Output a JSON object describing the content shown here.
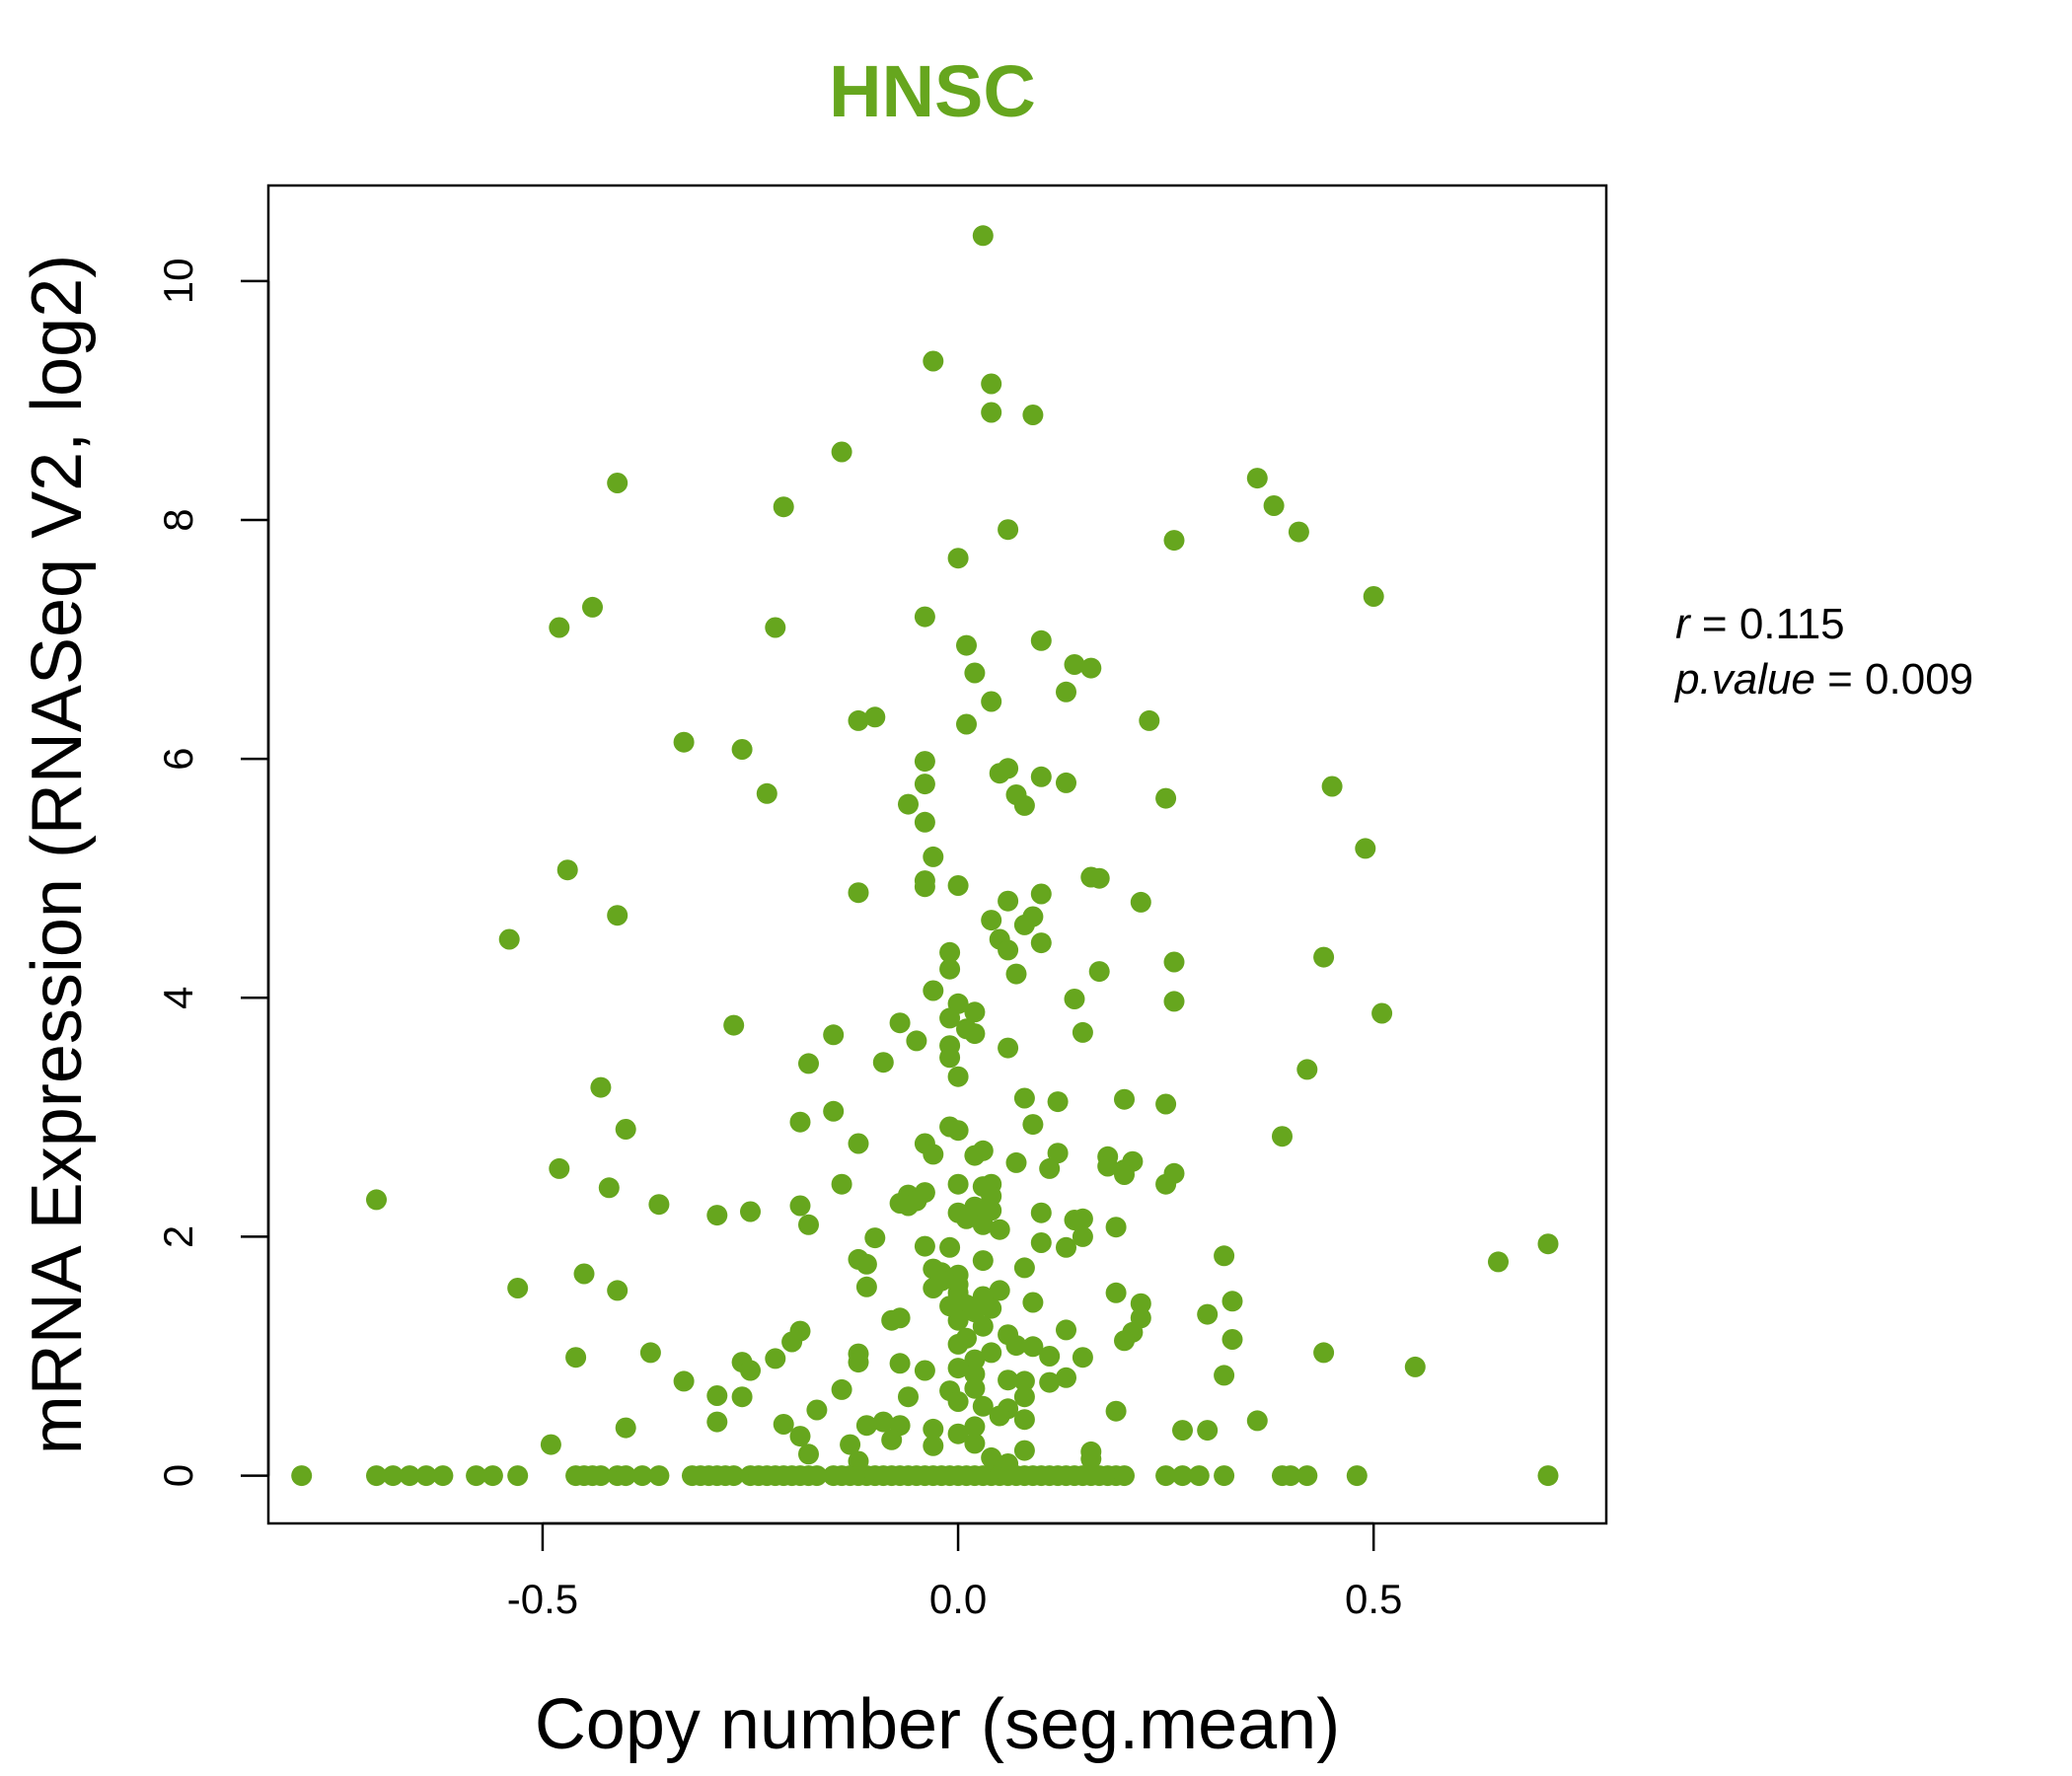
{
  "chart_data": {
    "type": "scatter",
    "title": "HNSC",
    "xlabel": "Copy number (seg.mean)",
    "ylabel": "mRNA Expression (RNASeq V2, log2)",
    "xlim": [
      -0.83,
      0.78
    ],
    "ylim": [
      -0.4,
      10.8
    ],
    "xticks": [
      -0.5,
      0.0,
      0.5
    ],
    "xtick_labels": [
      "-0.5",
      "0.0",
      "0.5"
    ],
    "yticks": [
      0,
      2,
      4,
      6,
      8,
      10
    ],
    "ytick_labels": [
      "0",
      "2",
      "4",
      "6",
      "8",
      "10"
    ],
    "grid": false,
    "color": "#66A61E",
    "annotations": {
      "r_label": "r",
      "r_value": "0.115",
      "p_label": "p.value",
      "p_value": "0.009"
    },
    "points": [
      [
        0.03,
        10.38
      ],
      [
        -0.03,
        9.33
      ],
      [
        0.04,
        9.14
      ],
      [
        0.04,
        8.9
      ],
      [
        0.09,
        8.88
      ],
      [
        -0.14,
        8.57
      ],
      [
        -0.41,
        8.31
      ],
      [
        0.36,
        8.35
      ],
      [
        0.38,
        8.12
      ],
      [
        -0.21,
        8.11
      ],
      [
        0.06,
        7.92
      ],
      [
        0.41,
        7.9
      ],
      [
        0.26,
        7.83
      ],
      [
        0.0,
        7.68
      ],
      [
        0.5,
        7.36
      ],
      [
        -0.44,
        7.27
      ],
      [
        -0.48,
        7.1
      ],
      [
        -0.22,
        7.1
      ],
      [
        -0.04,
        7.19
      ],
      [
        0.01,
        6.95
      ],
      [
        0.1,
        6.99
      ],
      [
        0.14,
        6.79
      ],
      [
        0.16,
        6.76
      ],
      [
        0.02,
        6.72
      ],
      [
        0.13,
        6.56
      ],
      [
        0.04,
        6.48
      ],
      [
        -0.12,
        6.32
      ],
      [
        -0.1,
        6.35
      ],
      [
        0.01,
        6.29
      ],
      [
        0.23,
        6.32
      ],
      [
        -0.33,
        6.14
      ],
      [
        -0.26,
        6.08
      ],
      [
        -0.04,
        5.98
      ],
      [
        0.05,
        5.88
      ],
      [
        0.06,
        5.92
      ],
      [
        0.1,
        5.85
      ],
      [
        -0.04,
        5.79
      ],
      [
        0.13,
        5.8
      ],
      [
        0.45,
        5.77
      ],
      [
        -0.23,
        5.71
      ],
      [
        0.07,
        5.7
      ],
      [
        0.25,
        5.67
      ],
      [
        -0.06,
        5.62
      ],
      [
        0.08,
        5.61
      ],
      [
        -0.04,
        5.47
      ],
      [
        0.49,
        5.25
      ],
      [
        -0.03,
        5.18
      ],
      [
        -0.47,
        5.07
      ],
      [
        0.16,
        5.01
      ],
      [
        0.17,
        5.0
      ],
      [
        -0.04,
        4.98
      ],
      [
        -0.04,
        4.93
      ],
      [
        0.0,
        4.94
      ],
      [
        -0.12,
        4.88
      ],
      [
        0.1,
        4.87
      ],
      [
        0.06,
        4.81
      ],
      [
        0.22,
        4.8
      ],
      [
        -0.41,
        4.69
      ],
      [
        0.04,
        4.65
      ],
      [
        0.09,
        4.68
      ],
      [
        0.08,
        4.61
      ],
      [
        -0.54,
        4.49
      ],
      [
        0.05,
        4.49
      ],
      [
        0.1,
        4.46
      ],
      [
        0.06,
        4.4
      ],
      [
        0.44,
        4.34
      ],
      [
        0.26,
        4.3
      ],
      [
        -0.01,
        4.38
      ],
      [
        -0.01,
        4.24
      ],
      [
        0.07,
        4.2
      ],
      [
        0.17,
        4.22
      ],
      [
        -0.03,
        4.06
      ],
      [
        0.14,
        3.99
      ],
      [
        0.26,
        3.97
      ],
      [
        0.0,
        3.95
      ],
      [
        0.02,
        3.88
      ],
      [
        -0.01,
        3.83
      ],
      [
        0.51,
        3.87
      ],
      [
        0.01,
        3.74
      ],
      [
        -0.07,
        3.79
      ],
      [
        -0.27,
        3.77
      ],
      [
        0.02,
        3.7
      ],
      [
        0.15,
        3.71
      ],
      [
        -0.15,
        3.69
      ],
      [
        -0.05,
        3.64
      ],
      [
        0.06,
        3.58
      ],
      [
        -0.01,
        3.6
      ],
      [
        -0.01,
        3.5
      ],
      [
        -0.09,
        3.46
      ],
      [
        -0.18,
        3.45
      ],
      [
        0.42,
        3.4
      ],
      [
        0.0,
        3.34
      ],
      [
        -0.43,
        3.25
      ],
      [
        0.08,
        3.16
      ],
      [
        0.2,
        3.15
      ],
      [
        0.12,
        3.13
      ],
      [
        0.25,
        3.11
      ],
      [
        -0.15,
        3.05
      ],
      [
        -0.19,
        2.96
      ],
      [
        0.09,
        2.94
      ],
      [
        -0.01,
        2.92
      ],
      [
        0.0,
        2.89
      ],
      [
        -0.4,
        2.9
      ],
      [
        0.39,
        2.84
      ],
      [
        -0.12,
        2.78
      ],
      [
        -0.04,
        2.78
      ],
      [
        0.03,
        2.72
      ],
      [
        0.12,
        2.7
      ],
      [
        -0.03,
        2.69
      ],
      [
        0.02,
        2.68
      ],
      [
        0.18,
        2.67
      ],
      [
        0.07,
        2.62
      ],
      [
        0.21,
        2.63
      ],
      [
        0.18,
        2.59
      ],
      [
        0.11,
        2.57
      ],
      [
        -0.48,
        2.57
      ],
      [
        0.2,
        2.56
      ],
      [
        0.26,
        2.53
      ],
      [
        0.2,
        2.52
      ],
      [
        0.0,
        2.44
      ],
      [
        0.03,
        2.42
      ],
      [
        -0.14,
        2.44
      ],
      [
        0.04,
        2.44
      ],
      [
        0.25,
        2.44
      ],
      [
        -0.42,
        2.41
      ],
      [
        -0.06,
        2.35
      ],
      [
        0.04,
        2.34
      ],
      [
        -0.07,
        2.28
      ],
      [
        -0.04,
        2.37
      ],
      [
        -0.05,
        2.3
      ],
      [
        -0.06,
        2.26
      ],
      [
        -0.7,
        2.31
      ],
      [
        -0.36,
        2.27
      ],
      [
        -0.19,
        2.26
      ],
      [
        0.02,
        2.25
      ],
      [
        0.04,
        2.22
      ],
      [
        -0.25,
        2.21
      ],
      [
        -0.29,
        2.18
      ],
      [
        0.0,
        2.2
      ],
      [
        0.1,
        2.2
      ],
      [
        0.01,
        2.15
      ],
      [
        0.15,
        2.15
      ],
      [
        0.14,
        2.14
      ],
      [
        0.03,
        2.1
      ],
      [
        -0.18,
        2.1
      ],
      [
        0.19,
        2.08
      ],
      [
        0.05,
        2.06
      ],
      [
        0.15,
        2.0
      ],
      [
        -0.1,
        1.99
      ],
      [
        0.1,
        1.95
      ],
      [
        0.71,
        1.94
      ],
      [
        -0.04,
        1.92
      ],
      [
        0.13,
        1.91
      ],
      [
        -0.01,
        1.91
      ],
      [
        0.32,
        1.84
      ],
      [
        -0.12,
        1.81
      ],
      [
        0.03,
        1.8
      ],
      [
        0.65,
        1.79
      ],
      [
        -0.11,
        1.77
      ],
      [
        -0.03,
        1.73
      ],
      [
        0.08,
        1.74
      ],
      [
        -0.02,
        1.7
      ],
      [
        -0.45,
        1.69
      ],
      [
        0.0,
        1.68
      ],
      [
        -0.02,
        1.63
      ],
      [
        0.0,
        1.6
      ],
      [
        -0.11,
        1.58
      ],
      [
        -0.53,
        1.57
      ],
      [
        -0.03,
        1.57
      ],
      [
        -0.41,
        1.55
      ],
      [
        0.05,
        1.55
      ],
      [
        0.0,
        1.53
      ],
      [
        0.19,
        1.53
      ],
      [
        0.03,
        1.5
      ],
      [
        0.33,
        1.46
      ],
      [
        0.09,
        1.45
      ],
      [
        0.22,
        1.44
      ],
      [
        0.01,
        1.43
      ],
      [
        -0.01,
        1.42
      ],
      [
        0.04,
        1.4
      ],
      [
        0.02,
        1.37
      ],
      [
        0.3,
        1.35
      ],
      [
        0.22,
        1.32
      ],
      [
        -0.08,
        1.3
      ],
      [
        0.0,
        1.3
      ],
      [
        -0.07,
        1.32
      ],
      [
        0.03,
        1.25
      ],
      [
        0.13,
        1.22
      ],
      [
        -0.19,
        1.21
      ],
      [
        0.21,
        1.2
      ],
      [
        0.06,
        1.18
      ],
      [
        0.01,
        1.15
      ],
      [
        0.33,
        1.14
      ],
      [
        0.2,
        1.13
      ],
      [
        -0.2,
        1.12
      ],
      [
        0.0,
        1.1
      ],
      [
        0.07,
        1.09
      ],
      [
        0.09,
        1.08
      ],
      [
        -0.37,
        1.03
      ],
      [
        0.04,
        1.03
      ],
      [
        0.44,
        1.03
      ],
      [
        -0.12,
        1.02
      ],
      [
        0.11,
        1.0
      ],
      [
        -0.46,
        0.99
      ],
      [
        0.15,
        0.99
      ],
      [
        -0.22,
        0.98
      ],
      [
        0.02,
        0.97
      ],
      [
        -0.26,
        0.95
      ],
      [
        -0.12,
        0.95
      ],
      [
        -0.07,
        0.94
      ],
      [
        0.55,
        0.91
      ],
      [
        -0.04,
        0.88
      ],
      [
        0.0,
        0.9
      ],
      [
        -0.25,
        0.88
      ],
      [
        0.02,
        0.85
      ],
      [
        0.32,
        0.84
      ],
      [
        0.13,
        0.82
      ],
      [
        -0.33,
        0.79
      ],
      [
        0.06,
        0.8
      ],
      [
        0.08,
        0.79
      ],
      [
        0.11,
        0.78
      ],
      [
        0.02,
        0.73
      ],
      [
        -0.14,
        0.72
      ],
      [
        -0.01,
        0.71
      ],
      [
        -0.29,
        0.67
      ],
      [
        0.08,
        0.66
      ],
      [
        -0.06,
        0.66
      ],
      [
        0.0,
        0.62
      ],
      [
        -0.26,
        0.66
      ],
      [
        0.03,
        0.58
      ],
      [
        0.06,
        0.56
      ],
      [
        -0.17,
        0.55
      ],
      [
        0.19,
        0.54
      ],
      [
        0.05,
        0.5
      ],
      [
        0.08,
        0.47
      ],
      [
        -0.29,
        0.45
      ],
      [
        0.36,
        0.46
      ],
      [
        -0.09,
        0.45
      ],
      [
        -0.21,
        0.43
      ],
      [
        -0.11,
        0.42
      ],
      [
        -0.07,
        0.42
      ],
      [
        0.02,
        0.41
      ],
      [
        -0.03,
        0.39
      ],
      [
        -0.4,
        0.4
      ],
      [
        0.27,
        0.38
      ],
      [
        0.3,
        0.38
      ],
      [
        0.0,
        0.35
      ],
      [
        -0.19,
        0.33
      ],
      [
        -0.08,
        0.3
      ],
      [
        0.02,
        0.27
      ],
      [
        -0.49,
        0.26
      ],
      [
        -0.13,
        0.26
      ],
      [
        -0.03,
        0.25
      ],
      [
        0.08,
        0.21
      ],
      [
        0.16,
        0.2
      ],
      [
        -0.18,
        0.18
      ],
      [
        0.04,
        0.15
      ],
      [
        0.16,
        0.14
      ],
      [
        -0.12,
        0.12
      ],
      [
        0.06,
        0.1
      ],
      [
        -0.79,
        0.0
      ],
      [
        -0.7,
        0.0
      ],
      [
        -0.68,
        0.0
      ],
      [
        -0.66,
        0.0
      ],
      [
        -0.64,
        0.0
      ],
      [
        -0.62,
        0.0
      ],
      [
        -0.58,
        0.0
      ],
      [
        -0.56,
        0.0
      ],
      [
        -0.53,
        0.0
      ],
      [
        -0.46,
        0.0
      ],
      [
        -0.45,
        0.0
      ],
      [
        -0.44,
        0.0
      ],
      [
        -0.43,
        0.0
      ],
      [
        -0.41,
        0.0
      ],
      [
        -0.4,
        0.0
      ],
      [
        -0.38,
        0.0
      ],
      [
        -0.36,
        0.0
      ],
      [
        -0.32,
        0.0
      ],
      [
        -0.31,
        0.0
      ],
      [
        -0.3,
        0.0
      ],
      [
        -0.29,
        0.0
      ],
      [
        -0.28,
        0.0
      ],
      [
        -0.27,
        0.0
      ],
      [
        -0.25,
        0.0
      ],
      [
        -0.24,
        0.0
      ],
      [
        -0.23,
        0.0
      ],
      [
        -0.22,
        0.0
      ],
      [
        -0.21,
        0.0
      ],
      [
        -0.2,
        0.0
      ],
      [
        -0.19,
        0.0
      ],
      [
        -0.18,
        0.0
      ],
      [
        -0.17,
        0.0
      ],
      [
        -0.15,
        0.0
      ],
      [
        -0.14,
        0.0
      ],
      [
        -0.13,
        0.0
      ],
      [
        -0.12,
        0.0
      ],
      [
        -0.11,
        0.0
      ],
      [
        -0.1,
        0.0
      ],
      [
        -0.09,
        0.0
      ],
      [
        -0.08,
        0.0
      ],
      [
        -0.07,
        0.0
      ],
      [
        -0.06,
        0.0
      ],
      [
        -0.05,
        0.0
      ],
      [
        -0.04,
        0.0
      ],
      [
        -0.03,
        0.0
      ],
      [
        -0.02,
        0.0
      ],
      [
        -0.01,
        0.0
      ],
      [
        0.0,
        0.0
      ],
      [
        0.01,
        0.0
      ],
      [
        0.02,
        0.0
      ],
      [
        0.03,
        0.0
      ],
      [
        0.04,
        0.0
      ],
      [
        0.05,
        0.0
      ],
      [
        0.06,
        0.0
      ],
      [
        0.07,
        0.0
      ],
      [
        0.08,
        0.0
      ],
      [
        0.09,
        0.0
      ],
      [
        0.1,
        0.0
      ],
      [
        0.11,
        0.0
      ],
      [
        0.12,
        0.0
      ],
      [
        0.13,
        0.0
      ],
      [
        0.14,
        0.0
      ],
      [
        0.15,
        0.0
      ],
      [
        0.16,
        0.0
      ],
      [
        0.17,
        0.0
      ],
      [
        0.18,
        0.0
      ],
      [
        0.19,
        0.0
      ],
      [
        0.2,
        0.0
      ],
      [
        0.25,
        0.0
      ],
      [
        0.27,
        0.0
      ],
      [
        0.29,
        0.0
      ],
      [
        0.32,
        0.0
      ],
      [
        0.39,
        0.0
      ],
      [
        0.4,
        0.0
      ],
      [
        0.42,
        0.0
      ],
      [
        0.48,
        0.0
      ],
      [
        0.71,
        0.0
      ]
    ]
  }
}
